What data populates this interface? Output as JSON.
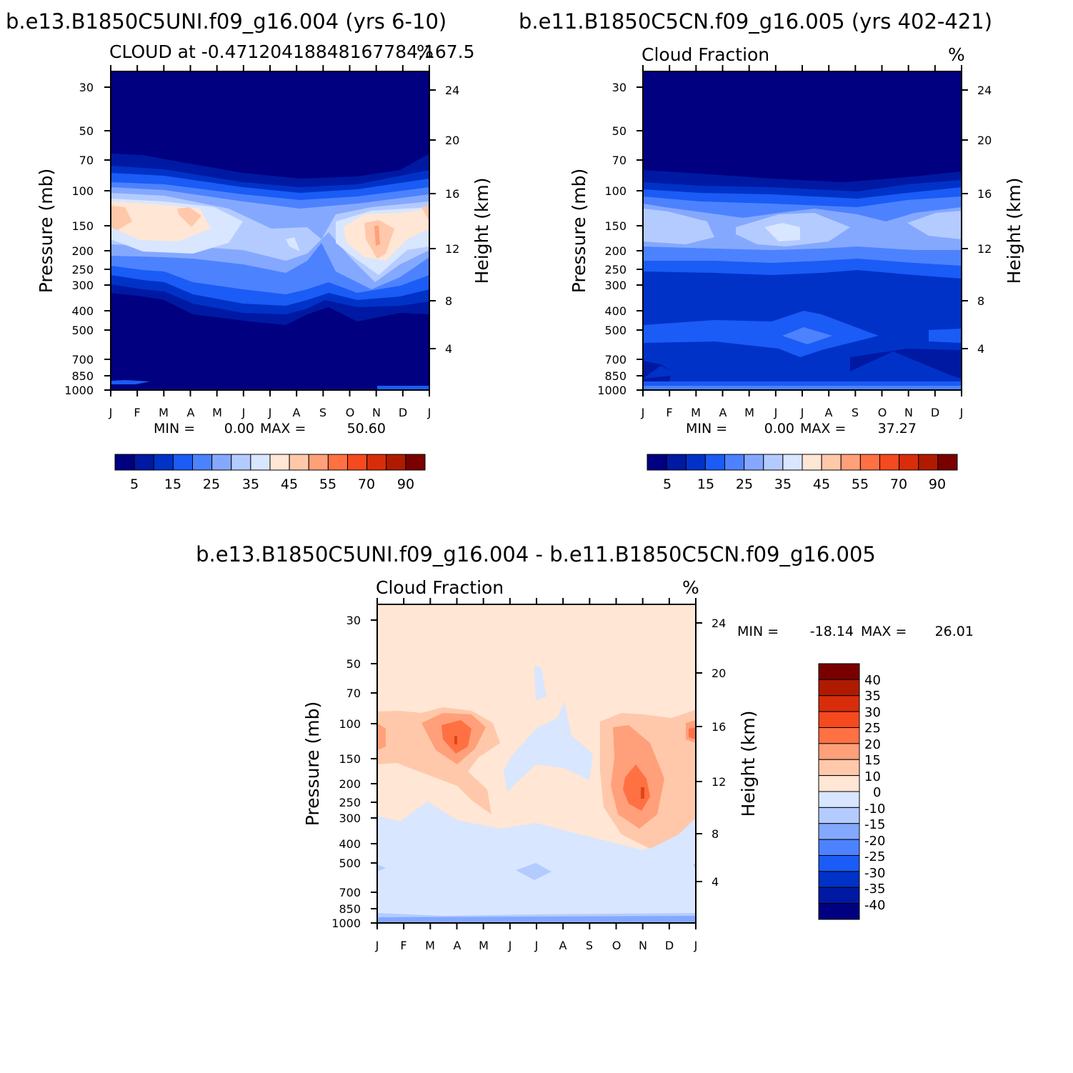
{
  "chart_data": [
    {
      "type": "heatmap",
      "title": "b.e13.B1850C5UNI.f09_g16.004 (yrs 6-10)",
      "subtitle_left": "CLOUD at -0.47120418848167784,167.5",
      "subtitle_right": "%",
      "xlabel": "",
      "ylabel": "Pressure (mb)",
      "ylabel_right": "Height (km)",
      "x_ticks": [
        "J",
        "F",
        "M",
        "A",
        "M",
        "J",
        "J",
        "A",
        "S",
        "O",
        "N",
        "D",
        "J"
      ],
      "y_ticks": [
        "30",
        "50",
        "70",
        "100",
        "150",
        "200",
        "250",
        "300",
        "400",
        "500",
        "700",
        "850",
        "1000"
      ],
      "y_right_ticks": [
        "24",
        "20",
        "16",
        "12",
        "8",
        "4"
      ],
      "min_label": "MIN =",
      "min_value": "0.00",
      "max_label": "MAX =",
      "max_value": "50.60",
      "colorbar_labels": [
        "5",
        "15",
        "25",
        "35",
        "45",
        "55",
        "70",
        "90"
      ],
      "levels": [
        5,
        10,
        15,
        20,
        25,
        30,
        35,
        40,
        45,
        50,
        55,
        60,
        70,
        80,
        90
      ],
      "colors": [
        "#000080",
        "#0019a3",
        "#0032c8",
        "#1a5cf5",
        "#4d82ff",
        "#85a8ff",
        "#b4cbff",
        "#d8e6ff",
        "#ffe6d5",
        "#ffc8aa",
        "#ffa07a",
        "#ff7043",
        "#f5491e",
        "#d82d0a",
        "#b01b00",
        "#7a0000"
      ],
      "peaks": [
        "Apr ~46 at 130 mb",
        "Nov ~51 at 160 mb",
        "Jan ~46 at 130 mb"
      ]
    },
    {
      "type": "heatmap",
      "title": "b.e11.B1850C5CN.f09_g16.005 (yrs 402-421)",
      "subtitle_left": "Cloud Fraction",
      "subtitle_right": "%",
      "xlabel": "",
      "ylabel": "Pressure (mb)",
      "ylabel_right": "Height (km)",
      "x_ticks": [
        "J",
        "F",
        "M",
        "A",
        "M",
        "J",
        "J",
        "A",
        "S",
        "O",
        "N",
        "D",
        "J"
      ],
      "y_ticks": [
        "30",
        "50",
        "70",
        "100",
        "150",
        "200",
        "250",
        "300",
        "400",
        "500",
        "700",
        "850",
        "1000"
      ],
      "y_right_ticks": [
        "24",
        "20",
        "16",
        "12",
        "8",
        "4"
      ],
      "min_label": "MIN =",
      "min_value": "0.00",
      "max_label": "MAX =",
      "max_value": "37.27",
      "colorbar_labels": [
        "5",
        "15",
        "25",
        "35",
        "45",
        "55",
        "70",
        "90"
      ],
      "levels": [
        5,
        10,
        15,
        20,
        25,
        30,
        35,
        40,
        45,
        50,
        55,
        60,
        70,
        80,
        90
      ],
      "colors": [
        "#000080",
        "#0019a3",
        "#0032c8",
        "#1a5cf5",
        "#4d82ff",
        "#85a8ff",
        "#b4cbff",
        "#d8e6ff",
        "#ffe6d5",
        "#ffc8aa",
        "#ffa07a",
        "#ff7043",
        "#f5491e",
        "#d82d0a",
        "#b01b00",
        "#7a0000"
      ],
      "peaks": [
        "Jun/Jul ~37 at 160 mb"
      ]
    },
    {
      "type": "heatmap",
      "title": "b.e13.B1850C5UNI.f09_g16.004 - b.e11.B1850C5CN.f09_g16.005",
      "subtitle_left": "Cloud Fraction",
      "subtitle_right": "%",
      "xlabel": "",
      "ylabel": "Pressure (mb)",
      "ylabel_right": "Height (km)",
      "x_ticks": [
        "J",
        "F",
        "M",
        "A",
        "M",
        "J",
        "J",
        "A",
        "S",
        "O",
        "N",
        "D",
        "J"
      ],
      "y_ticks": [
        "30",
        "50",
        "70",
        "100",
        "150",
        "200",
        "250",
        "300",
        "400",
        "500",
        "700",
        "850",
        "1000"
      ],
      "y_right_ticks": [
        "24",
        "20",
        "16",
        "12",
        "8",
        "4"
      ],
      "min_label": "MIN =",
      "min_value": "-18.14",
      "max_label": "MAX =",
      "max_value": "26.01",
      "colorbar_labels": [
        "40",
        "35",
        "30",
        "25",
        "20",
        "15",
        "10",
        "0",
        "-10",
        "-15",
        "-20",
        "-25",
        "-30",
        "-35",
        "-40"
      ],
      "levels": [
        -40,
        -35,
        -30,
        -25,
        -20,
        -15,
        -10,
        0,
        10,
        15,
        20,
        25,
        30,
        35,
        40
      ],
      "colors": [
        "#000080",
        "#0019a3",
        "#0032c8",
        "#1a5cf5",
        "#4d82ff",
        "#85a8ff",
        "#b4cbff",
        "#d8e6ff",
        "#ffe6d5",
        "#ffc8aa",
        "#ffa07a",
        "#ff7043",
        "#f5491e",
        "#d82d0a",
        "#b01b00",
        "#7a0000"
      ],
      "peaks": [
        "Apr ~26 at 110 mb",
        "Nov ~26 at 220 mb",
        "Jul ~-15 at 530 mb"
      ]
    }
  ]
}
